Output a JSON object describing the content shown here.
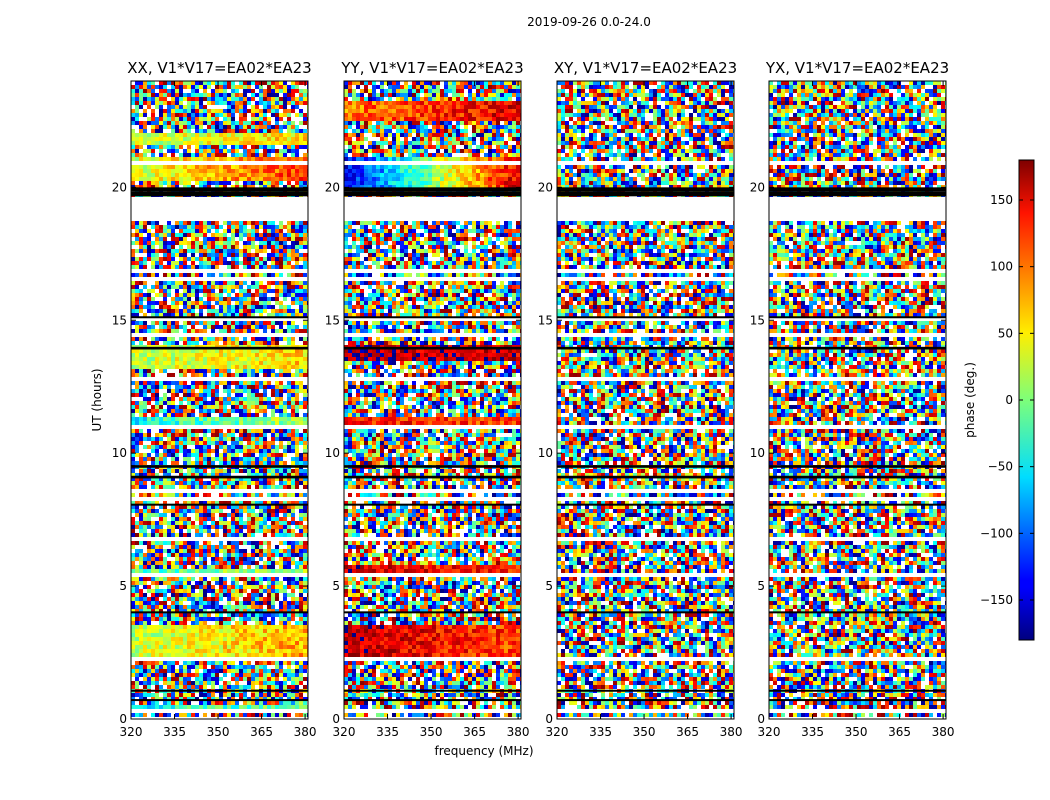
{
  "chart_data": {
    "type": "heatmap",
    "suptitle": "2019-09-26 0.0-24.0",
    "xlabel": "frequency (MHz)",
    "ylabel": "UT (hours)",
    "xlim": [
      320,
      381
    ],
    "ylim": [
      0,
      24
    ],
    "x_ticks": [
      "320",
      "335",
      "350",
      "365",
      "380"
    ],
    "x_tick_values": [
      320,
      335,
      350,
      365,
      380
    ],
    "y_ticks": [
      "0",
      "5",
      "10",
      "15",
      "20"
    ],
    "y_tick_values": [
      0,
      5,
      10,
      15,
      20
    ],
    "colormap": "jet",
    "colorbar": {
      "label": "phase (deg.)",
      "range": [
        -180,
        180
      ],
      "ticks": [
        "−150",
        "−100",
        "−50",
        "0",
        "50",
        "100",
        "150"
      ],
      "tick_values": [
        -150,
        -100,
        -50,
        0,
        50,
        100,
        150
      ]
    },
    "flagged_bands_hours": [
      [
        18.7,
        19.7
      ],
      [
        19.85,
        20.0
      ],
      [
        15.1,
        15.15
      ],
      [
        13.9,
        14.0
      ],
      [
        9.45,
        9.55
      ],
      [
        9.05,
        9.15
      ],
      [
        8.05,
        8.1
      ],
      [
        4.0,
        4.05
      ],
      [
        1.05,
        1.1
      ],
      [
        0.7,
        0.75
      ]
    ],
    "panels": [
      {
        "title": "XX, V1*V17=EA02*EA23",
        "coherent_bands": [
          {
            "t0": 20.2,
            "t1": 21.2,
            "phase_start": 30,
            "phase_end": 120
          },
          {
            "t0": 21.6,
            "t1": 22.0,
            "phase_start": 20,
            "phase_end": 60
          },
          {
            "t0": 13.2,
            "t1": 14.1,
            "phase_start": 20,
            "phase_end": 60
          },
          {
            "t0": 10.9,
            "t1": 11.4,
            "phase_start": -40,
            "phase_end": 20
          },
          {
            "t0": 2.2,
            "t1": 3.6,
            "phase_start": 20,
            "phase_end": 80
          },
          {
            "t0": 5.4,
            "t1": 5.7,
            "phase_start": -20,
            "phase_end": 20
          },
          {
            "t0": 0.2,
            "t1": 0.5,
            "phase_start": -40,
            "phase_end": 0
          }
        ]
      },
      {
        "title": "YY, V1*V17=EA02*EA23",
        "coherent_bands": [
          {
            "t0": 20.0,
            "t1": 21.2,
            "phase_start": -140,
            "phase_end": 160
          },
          {
            "t0": 22.5,
            "t1": 23.3,
            "phase_start": 90,
            "phase_end": 150
          },
          {
            "t0": 13.5,
            "t1": 14.1,
            "phase_start": 170,
            "phase_end": 150
          },
          {
            "t0": 10.9,
            "t1": 11.4,
            "phase_start": 130,
            "phase_end": 110
          },
          {
            "t0": 5.4,
            "t1": 5.8,
            "phase_start": 150,
            "phase_end": 120
          },
          {
            "t0": 2.2,
            "t1": 3.6,
            "phase_start": 160,
            "phase_end": 110
          }
        ]
      },
      {
        "title": "XY, V1*V17=EA02*EA23",
        "coherent_bands": []
      },
      {
        "title": "YX, V1*V17=EA02*EA23",
        "coherent_bands": []
      }
    ]
  }
}
